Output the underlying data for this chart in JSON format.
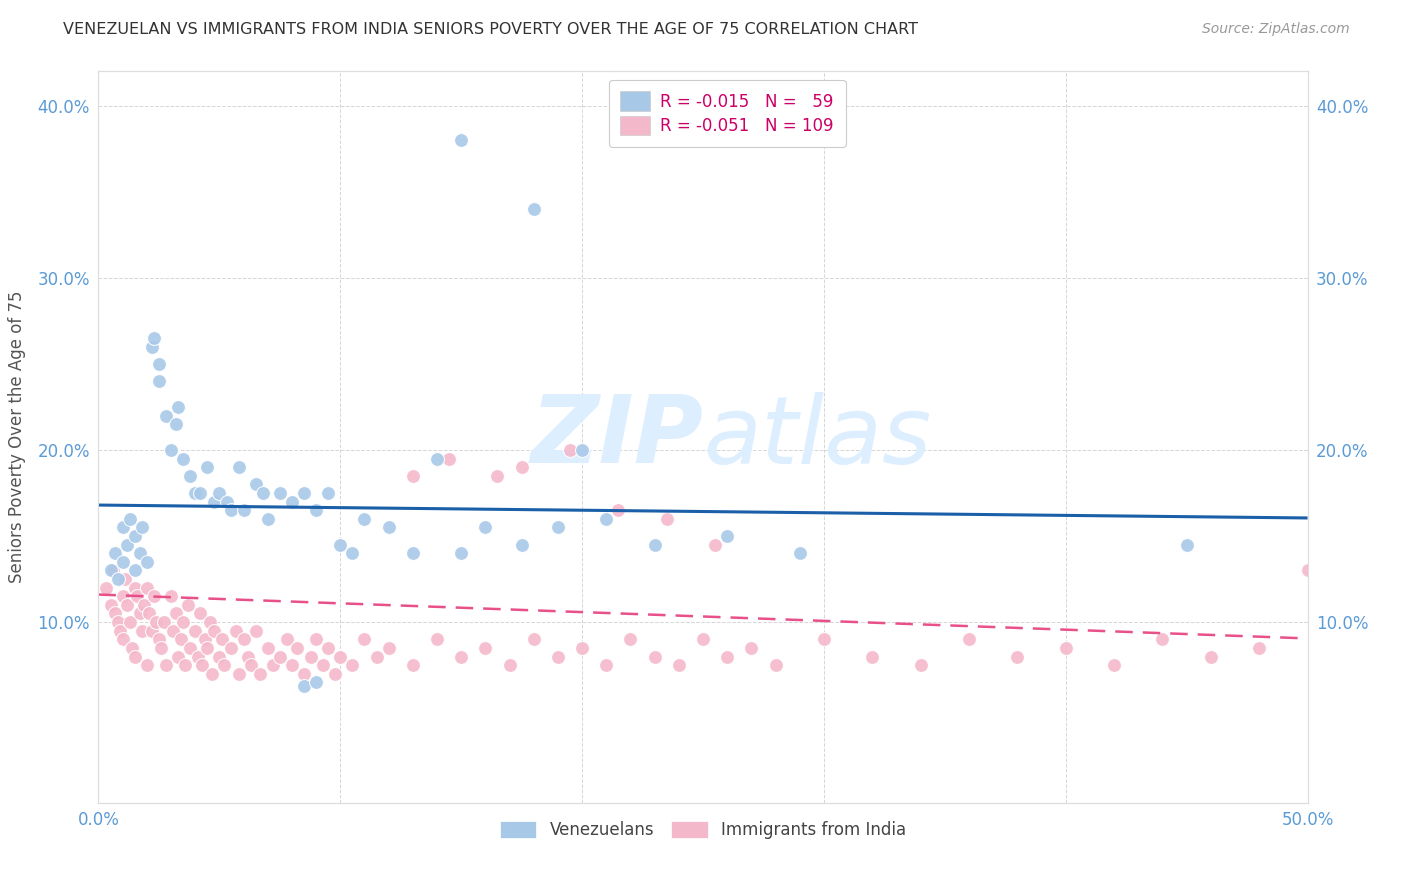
{
  "title": "VENEZUELAN VS IMMIGRANTS FROM INDIA SENIORS POVERTY OVER THE AGE OF 75 CORRELATION CHART",
  "source": "Source: ZipAtlas.com",
  "ylabel": "Seniors Poverty Over the Age of 75",
  "xlim": [
    0.0,
    0.5
  ],
  "ylim": [
    -0.005,
    0.42
  ],
  "yticks": [
    0.1,
    0.2,
    0.3,
    0.4
  ],
  "ytick_labels": [
    "10.0%",
    "20.0%",
    "30.0%",
    "40.0%"
  ],
  "xticks": [
    0.0,
    0.1,
    0.2,
    0.3,
    0.4,
    0.5
  ],
  "xtick_labels": [
    "0.0%",
    "",
    "",
    "",
    "",
    "50.0%"
  ],
  "legend_r1": "R = -0.015",
  "legend_n1": "N =  59",
  "legend_r2": "R = -0.051",
  "legend_n2": "N = 109",
  "blue_color": "#a8c8e8",
  "pink_color": "#f4b8cb",
  "trend_blue": "#1a5fa8",
  "trend_pink": "#e8508a",
  "background_color": "#ffffff",
  "grid_color": "#cccccc",
  "title_color": "#333333",
  "axis_color": "#5b9bd5",
  "watermark_zip": "ZIP",
  "watermark_atlas": "atlas",
  "watermark_color": "#ddeeff",
  "vz_x": [
    0.005,
    0.007,
    0.008,
    0.01,
    0.01,
    0.012,
    0.013,
    0.015,
    0.015,
    0.017,
    0.018,
    0.02,
    0.022,
    0.023,
    0.025,
    0.025,
    0.028,
    0.03,
    0.032,
    0.033,
    0.035,
    0.038,
    0.04,
    0.042,
    0.045,
    0.048,
    0.05,
    0.053,
    0.055,
    0.058,
    0.06,
    0.065,
    0.068,
    0.07,
    0.075,
    0.08,
    0.085,
    0.09,
    0.095,
    0.1,
    0.105,
    0.11,
    0.12,
    0.13,
    0.14,
    0.15,
    0.16,
    0.175,
    0.19,
    0.21,
    0.23,
    0.26,
    0.29,
    0.15,
    0.18,
    0.2,
    0.45,
    0.085,
    0.09
  ],
  "vz_y": [
    0.13,
    0.14,
    0.125,
    0.135,
    0.155,
    0.145,
    0.16,
    0.13,
    0.15,
    0.14,
    0.155,
    0.135,
    0.26,
    0.265,
    0.24,
    0.25,
    0.22,
    0.2,
    0.215,
    0.225,
    0.195,
    0.185,
    0.175,
    0.175,
    0.19,
    0.17,
    0.175,
    0.17,
    0.165,
    0.19,
    0.165,
    0.18,
    0.175,
    0.16,
    0.175,
    0.17,
    0.175,
    0.165,
    0.175,
    0.145,
    0.14,
    0.16,
    0.155,
    0.14,
    0.195,
    0.14,
    0.155,
    0.145,
    0.155,
    0.16,
    0.145,
    0.15,
    0.14,
    0.38,
    0.34,
    0.2,
    0.145,
    0.063,
    0.065
  ],
  "ind_x": [
    0.003,
    0.005,
    0.006,
    0.007,
    0.008,
    0.009,
    0.01,
    0.01,
    0.011,
    0.012,
    0.013,
    0.014,
    0.015,
    0.015,
    0.016,
    0.017,
    0.018,
    0.019,
    0.02,
    0.02,
    0.021,
    0.022,
    0.023,
    0.024,
    0.025,
    0.026,
    0.027,
    0.028,
    0.03,
    0.031,
    0.032,
    0.033,
    0.034,
    0.035,
    0.036,
    0.037,
    0.038,
    0.04,
    0.041,
    0.042,
    0.043,
    0.044,
    0.045,
    0.046,
    0.047,
    0.048,
    0.05,
    0.051,
    0.052,
    0.055,
    0.057,
    0.058,
    0.06,
    0.062,
    0.063,
    0.065,
    0.067,
    0.07,
    0.072,
    0.075,
    0.078,
    0.08,
    0.082,
    0.085,
    0.088,
    0.09,
    0.093,
    0.095,
    0.098,
    0.1,
    0.105,
    0.11,
    0.115,
    0.12,
    0.13,
    0.14,
    0.15,
    0.16,
    0.17,
    0.18,
    0.19,
    0.2,
    0.21,
    0.22,
    0.23,
    0.24,
    0.25,
    0.26,
    0.27,
    0.28,
    0.3,
    0.32,
    0.34,
    0.36,
    0.38,
    0.4,
    0.42,
    0.44,
    0.46,
    0.48,
    0.175,
    0.195,
    0.13,
    0.145,
    0.165,
    0.215,
    0.235,
    0.255,
    0.5
  ],
  "ind_y": [
    0.12,
    0.11,
    0.13,
    0.105,
    0.1,
    0.095,
    0.115,
    0.09,
    0.125,
    0.11,
    0.1,
    0.085,
    0.12,
    0.08,
    0.115,
    0.105,
    0.095,
    0.11,
    0.12,
    0.075,
    0.105,
    0.095,
    0.115,
    0.1,
    0.09,
    0.085,
    0.1,
    0.075,
    0.115,
    0.095,
    0.105,
    0.08,
    0.09,
    0.1,
    0.075,
    0.11,
    0.085,
    0.095,
    0.08,
    0.105,
    0.075,
    0.09,
    0.085,
    0.1,
    0.07,
    0.095,
    0.08,
    0.09,
    0.075,
    0.085,
    0.095,
    0.07,
    0.09,
    0.08,
    0.075,
    0.095,
    0.07,
    0.085,
    0.075,
    0.08,
    0.09,
    0.075,
    0.085,
    0.07,
    0.08,
    0.09,
    0.075,
    0.085,
    0.07,
    0.08,
    0.075,
    0.09,
    0.08,
    0.085,
    0.075,
    0.09,
    0.08,
    0.085,
    0.075,
    0.09,
    0.08,
    0.085,
    0.075,
    0.09,
    0.08,
    0.075,
    0.09,
    0.08,
    0.085,
    0.075,
    0.09,
    0.08,
    0.075,
    0.09,
    0.08,
    0.085,
    0.075,
    0.09,
    0.08,
    0.085,
    0.19,
    0.2,
    0.185,
    0.195,
    0.185,
    0.165,
    0.16,
    0.145,
    0.13
  ],
  "blue_intercept": 0.168,
  "blue_slope": -0.015,
  "pink_intercept": 0.116,
  "pink_slope": -0.051
}
